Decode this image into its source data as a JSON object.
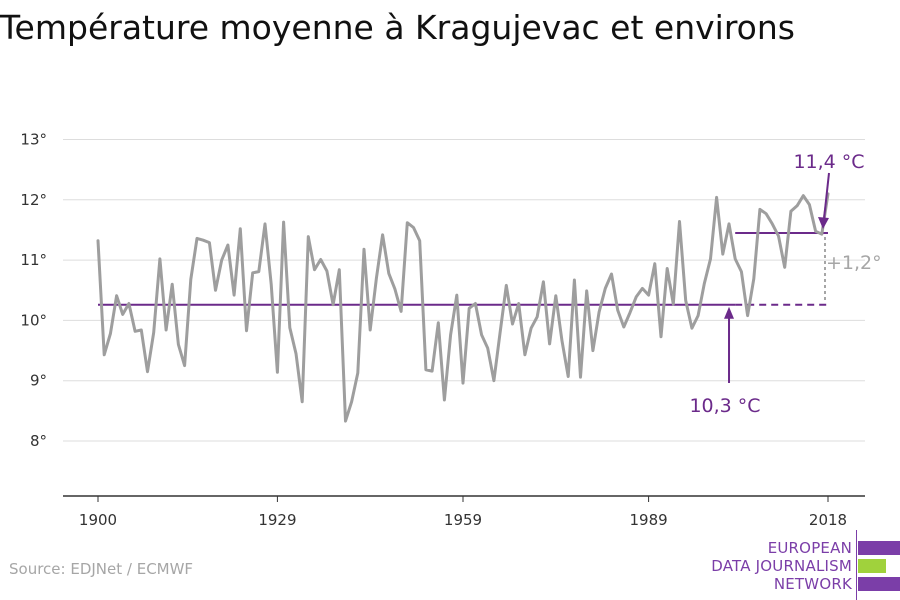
{
  "title": "Température moyenne à Kragujevac et environs",
  "source": "Source: EDJNet / ECMWF",
  "logo": {
    "lines": [
      "EUROPEAN",
      "DATA JOURNALISM",
      "NETWORK"
    ]
  },
  "colors": {
    "series": "#9e9e9e",
    "purple": "#6b2a8a",
    "grid": "#dddddd",
    "axis": "#333333",
    "diff": "#a6a6a6"
  },
  "chart_data": {
    "type": "line",
    "title": "Température moyenne à Kragujevac et environs",
    "xlabel": "",
    "ylabel": "",
    "xlim": [
      1900,
      2018
    ],
    "ylim": [
      7,
      13.5
    ],
    "y_ticks": [
      8,
      9,
      10,
      11,
      12,
      13
    ],
    "y_tick_labels": [
      "8°",
      "9°",
      "10°",
      "11°",
      "12°",
      "13°"
    ],
    "x_ticks": [
      1900,
      1929,
      1959,
      1989,
      2018
    ],
    "x_tick_labels": [
      "1900",
      "1929",
      "1959",
      "1989",
      "2018"
    ],
    "grid": true,
    "series": [
      {
        "x": [
          1900,
          1901,
          1902,
          1903,
          1904,
          1905,
          1906,
          1907,
          1908,
          1909,
          1910,
          1911,
          1912,
          1913,
          1914,
          1915,
          1916,
          1917,
          1918,
          1919,
          1920,
          1921,
          1922,
          1923,
          1924,
          1925,
          1926,
          1927,
          1928,
          1929,
          1930,
          1931,
          1932,
          1933,
          1934,
          1935,
          1936,
          1937,
          1938,
          1939,
          1940,
          1941,
          1942,
          1943,
          1944,
          1945,
          1946,
          1947,
          1948,
          1949,
          1950,
          1951,
          1952,
          1953,
          1954,
          1955,
          1956,
          1957,
          1958,
          1959,
          1960,
          1961,
          1962,
          1963,
          1964,
          1965,
          1966,
          1967,
          1968,
          1969,
          1970,
          1971,
          1972,
          1973,
          1974,
          1975,
          1976,
          1977,
          1978,
          1979,
          1980,
          1981,
          1982,
          1983,
          1984,
          1985,
          1986,
          1987,
          1988,
          1989,
          1990,
          1991,
          1992,
          1993,
          1994,
          1995,
          1996,
          1997,
          1998,
          1999,
          2000,
          2001,
          2002,
          2003,
          2004,
          2005,
          2006,
          2007,
          2008,
          2009,
          2010,
          2011,
          2012,
          2013,
          2014,
          2015,
          2016,
          2017,
          2018
        ],
        "values": [
          11.32,
          9.43,
          9.78,
          10.41,
          10.1,
          10.28,
          9.82,
          9.84,
          9.15,
          9.8,
          11.02,
          9.84,
          10.6,
          9.6,
          9.25,
          10.68,
          11.36,
          11.33,
          11.29,
          10.5,
          11.0,
          11.25,
          10.42,
          11.52,
          9.83,
          10.79,
          10.81,
          11.6,
          10.6,
          9.14,
          11.63,
          9.88,
          9.45,
          8.65,
          11.39,
          10.84,
          11.01,
          10.82,
          10.26,
          10.84,
          8.33,
          8.65,
          9.13,
          11.18,
          9.84,
          10.7,
          11.42,
          10.78,
          10.52,
          10.15,
          11.62,
          11.54,
          11.32,
          9.18,
          9.16,
          9.96,
          8.68,
          9.76,
          10.42,
          8.96,
          10.2,
          10.28,
          9.76,
          9.54,
          9.0,
          9.8,
          10.58,
          9.94,
          10.28,
          9.43,
          9.87,
          10.06,
          10.64,
          9.61,
          10.41,
          9.66,
          9.07,
          10.67,
          9.06,
          10.49,
          9.5,
          10.14,
          10.53,
          10.77,
          10.17,
          9.89,
          10.13,
          10.39,
          10.53,
          10.42,
          10.94,
          9.73,
          10.86,
          10.27,
          11.64,
          10.33,
          9.87,
          10.08,
          10.61,
          11.02,
          12.04,
          11.1,
          11.6,
          11.02,
          10.81,
          10.08,
          10.69,
          11.84,
          11.77,
          11.6,
          11.4,
          10.88,
          11.81,
          11.9,
          12.07,
          11.92,
          11.48,
          11.43,
          12.1
        ]
      }
    ],
    "reference_lines": [
      {
        "label": "10,3 °C",
        "value": 10.26,
        "x_start": 1900,
        "x_end": 2003,
        "x_dashed_end": 2018,
        "color": "#6b2a8a"
      },
      {
        "label": "11,4 °C",
        "value": 11.45,
        "x_start": 2003,
        "x_end": 2018,
        "color": "#6b2a8a"
      }
    ],
    "difference": {
      "label": "+1,2°",
      "x": 2018,
      "from": 10.26,
      "to": 11.45
    }
  }
}
